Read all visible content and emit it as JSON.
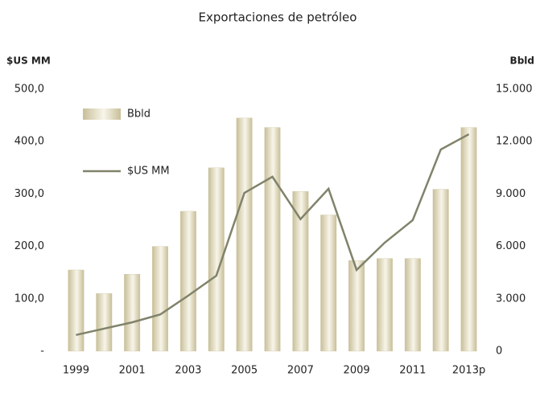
{
  "chart_data": {
    "type": "bar-line",
    "title": "Exportaciones de petróleo",
    "y_label": "$US MM",
    "y2_label": "Bbld",
    "categories": [
      "1999",
      null,
      "2001",
      null,
      "2003",
      null,
      "2005",
      null,
      "2007",
      null,
      "2009",
      null,
      "2011",
      null,
      "2013p"
    ],
    "series": [
      {
        "name": "Bbld",
        "type": "bar",
        "axis": "y2",
        "color": "#c8bf98",
        "values": [
          4650,
          3300,
          4410,
          6000,
          8010,
          10500,
          13350,
          12810,
          9150,
          7800,
          5190,
          5310,
          5310,
          9270,
          12810
        ]
      },
      {
        "name": "$US MM",
        "type": "line",
        "axis": "y",
        "color": "#80836a",
        "values": [
          31,
          43,
          55,
          70,
          106,
          144,
          302,
          333,
          252,
          310,
          155,
          207,
          250,
          385,
          414
        ]
      }
    ],
    "ylim": [
      0,
      500
    ],
    "yticks": [
      {
        "value": 0,
        "label": "-"
      },
      {
        "value": 100,
        "label": "100,0"
      },
      {
        "value": 200,
        "label": "200,0"
      },
      {
        "value": 300,
        "label": "300,0"
      },
      {
        "value": 400,
        "label": "400,0"
      },
      {
        "value": 500,
        "label": "500,0"
      }
    ],
    "y2lim": [
      0,
      15000
    ],
    "y2ticks": [
      0,
      {
        "value": 3000,
        "label": "3.000"
      },
      {
        "value": 6000,
        "label": "6.000"
      },
      {
        "value": 9000,
        "label": "9.000"
      },
      {
        "value": 12000,
        "label": "12.000"
      },
      {
        "value": 15000,
        "label": "15.000"
      }
    ],
    "grid": false,
    "legend": "top-left"
  }
}
